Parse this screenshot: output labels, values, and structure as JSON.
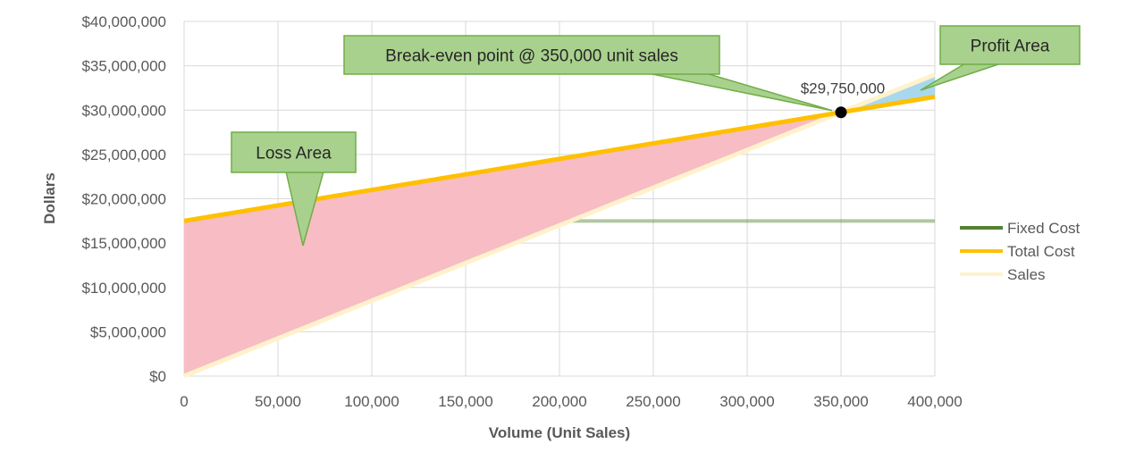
{
  "chart_data": {
    "type": "line",
    "title": "",
    "xlabel": "Volume (Unit Sales)",
    "ylabel": "Dollars",
    "xlim": [
      0,
      400000
    ],
    "ylim": [
      0,
      40000000
    ],
    "x_ticks": [
      0,
      50000,
      100000,
      150000,
      200000,
      250000,
      300000,
      350000,
      400000
    ],
    "x_tick_labels": [
      "0",
      "50,000",
      "100,000",
      "150,000",
      "200,000",
      "250,000",
      "300,000",
      "350,000",
      "400,000"
    ],
    "y_ticks": [
      0,
      5000000,
      10000000,
      15000000,
      20000000,
      25000000,
      30000000,
      35000000,
      40000000
    ],
    "y_tick_labels": [
      "$0",
      "$5,000,000",
      "$10,000,000",
      "$15,000,000",
      "$20,000,000",
      "$25,000,000",
      "$30,000,000",
      "$35,000,000",
      "$40,000,000"
    ],
    "grid": true,
    "legend_position": "right",
    "series": [
      {
        "name": "Fixed Cost",
        "color": "#548235",
        "x": [
          0,
          400000
        ],
        "y": [
          17500000,
          17500000
        ]
      },
      {
        "name": "Total Cost",
        "color": "#FFC000",
        "x": [
          0,
          350000,
          400000
        ],
        "y": [
          17500000,
          29750000,
          31500000
        ]
      },
      {
        "name": "Sales",
        "color": "#FFF2CC",
        "x": [
          0,
          350000,
          400000
        ],
        "y": [
          0,
          29750000,
          34000000
        ]
      }
    ],
    "areas": [
      {
        "name": "Loss Area",
        "color": "#F8BCC4",
        "from_x": 0,
        "to_x": 350000
      },
      {
        "name": "Profit Area",
        "color": "#A8D8EE",
        "from_x": 350000,
        "to_x": 400000
      }
    ],
    "break_even": {
      "x": 350000,
      "y": 29750000,
      "label": "$29,750,000"
    },
    "annotations": [
      {
        "id": "break-even",
        "text": "Break-even point @ 350,000 unit sales"
      },
      {
        "id": "profit",
        "text": "Profit Area"
      },
      {
        "id": "loss",
        "text": "Loss Area"
      }
    ]
  }
}
